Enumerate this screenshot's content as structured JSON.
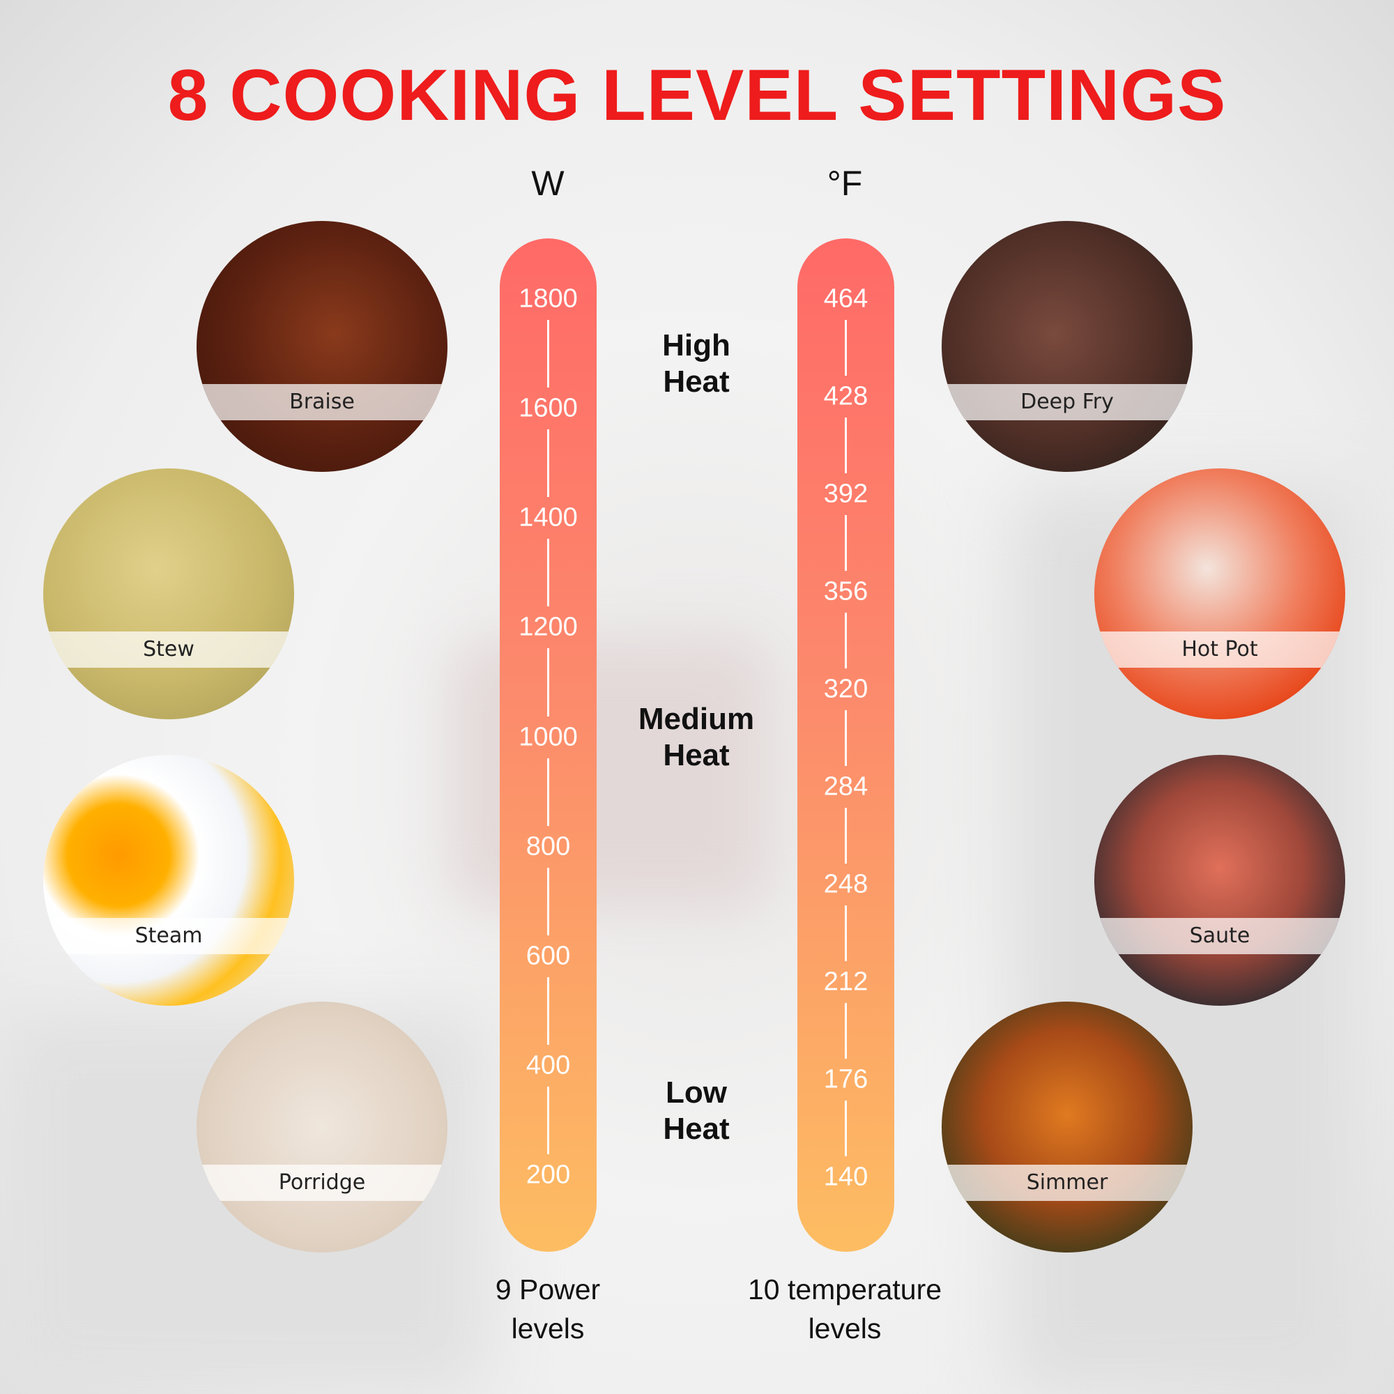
{
  "title": "8 COOKING LEVEL SETTINGS",
  "title_color": "#ee1c1c",
  "power": {
    "unit": "W",
    "ticks": [
      "1800",
      "1600",
      "1400",
      "1200",
      "1000",
      "800",
      "600",
      "400",
      "200"
    ],
    "caption_line1": "9 Power",
    "caption_line2": "levels"
  },
  "temperature": {
    "unit": "°F",
    "ticks": [
      "464",
      "428",
      "392",
      "356",
      "320",
      "284",
      "248",
      "212",
      "176",
      "140"
    ],
    "caption_line1": "10 temperature",
    "caption_line2": "levels"
  },
  "heat_levels": [
    {
      "line1": "High",
      "line2": "Heat"
    },
    {
      "line1": "Medium",
      "line2": "Heat"
    },
    {
      "line1": "Low",
      "line2": "Heat"
    }
  ],
  "modes": [
    "Braise",
    "Stew",
    "Steam",
    "Porridge",
    "Deep Fry",
    "Hot Pot",
    "Saute",
    "Simmer"
  ]
}
